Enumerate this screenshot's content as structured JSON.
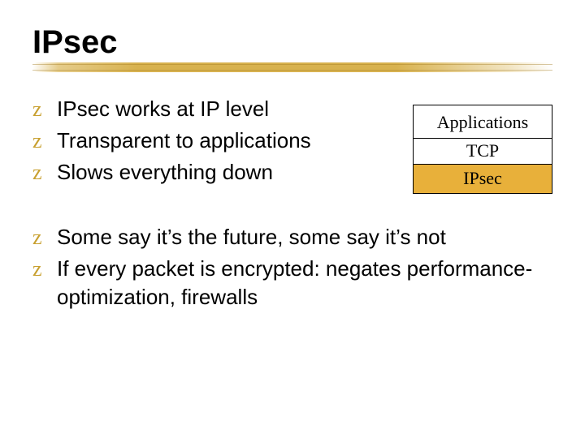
{
  "title": "IPsec",
  "colors": {
    "bullet_marker": "#c8a030",
    "underline_gradient": "#d4aa3c",
    "stack_highlight_bg": "#e8b03a",
    "text": "#000000",
    "background": "#ffffff",
    "border": "#000000"
  },
  "typography": {
    "title_fontsize": 40,
    "title_weight": "bold",
    "bullet_fontsize": 26,
    "stack_fontsize": 22,
    "stack_font_family": "Times New Roman",
    "body_font_family": "Arial"
  },
  "bullet_marker": "z",
  "bullets_top": [
    "IPsec works at IP level",
    "Transparent to applications",
    "Slows everything down"
  ],
  "stack": {
    "rows": [
      {
        "label": "Applications",
        "highlight": false
      },
      {
        "label": "TCP",
        "highlight": false
      },
      {
        "label": "IPsec",
        "highlight": true
      }
    ]
  },
  "bullets_bottom": [
    "Some say it’s the future, some say it’s not",
    "If every packet is encrypted:  negates performance-optimization, firewalls"
  ]
}
